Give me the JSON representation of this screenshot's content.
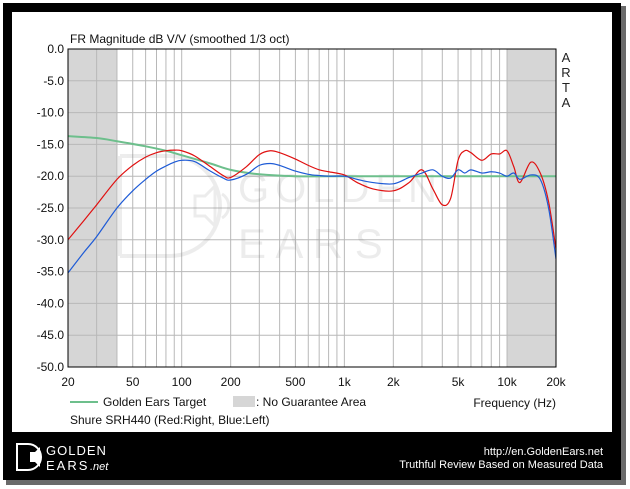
{
  "chart_data": {
    "type": "line",
    "title": "FR Magnitude dB V/V (smoothed 1/3 oct)",
    "side_label": [
      "A",
      "R",
      "T",
      "A"
    ],
    "xlabel": "Frequency (Hz)",
    "ylabel": "",
    "x_scale": "log",
    "xlim": [
      20,
      20000
    ],
    "ylim": [
      -50,
      0
    ],
    "x_ticks": [
      {
        "value": 20,
        "label": "20"
      },
      {
        "value": 50,
        "label": "50"
      },
      {
        "value": 100,
        "label": "100"
      },
      {
        "value": 200,
        "label": "200"
      },
      {
        "value": 500,
        "label": "500"
      },
      {
        "value": 1000,
        "label": "1k"
      },
      {
        "value": 2000,
        "label": "2k"
      },
      {
        "value": 5000,
        "label": "5k"
      },
      {
        "value": 10000,
        "label": "10k"
      },
      {
        "value": 20000,
        "label": "20k"
      }
    ],
    "y_ticks": [
      {
        "value": 0,
        "label": "0.0"
      },
      {
        "value": -5,
        "label": "-5.0"
      },
      {
        "value": -10,
        "label": "-10.0"
      },
      {
        "value": -15,
        "label": "-15.0"
      },
      {
        "value": -20,
        "label": "-20.0"
      },
      {
        "value": -25,
        "label": "-25.0"
      },
      {
        "value": -30,
        "label": "-30.0"
      },
      {
        "value": -35,
        "label": "-35.0"
      },
      {
        "value": -40,
        "label": "-40.0"
      },
      {
        "value": -45,
        "label": "-45.0"
      },
      {
        "value": -50,
        "label": "-50.0"
      }
    ],
    "grid": true,
    "no_guarantee_areas": [
      [
        20,
        40
      ],
      [
        10000,
        20000
      ]
    ],
    "series": [
      {
        "name": "Golden Ears Target",
        "color": "#6dbf8c",
        "x": [
          20,
          30,
          40,
          60,
          80,
          100,
          150,
          200,
          300,
          500,
          1000,
          2000,
          5000,
          10000,
          20000
        ],
        "y": [
          -13.7,
          -14.0,
          -14.5,
          -15.3,
          -16.0,
          -16.7,
          -18.0,
          -19.0,
          -19.7,
          -20.0,
          -20.0,
          -20.0,
          -20.0,
          -20.0,
          -20.0
        ]
      },
      {
        "name": "Right",
        "color": "#e01010",
        "x": [
          20,
          25,
          30,
          40,
          50,
          60,
          70,
          80,
          90,
          100,
          120,
          150,
          180,
          200,
          250,
          300,
          350,
          400,
          500,
          600,
          700,
          800,
          1000,
          1200,
          1500,
          2000,
          2500,
          3000,
          3500,
          4000,
          4500,
          5000,
          5500,
          6000,
          7000,
          8000,
          9000,
          10000,
          11000,
          12000,
          14000,
          16000,
          18000,
          20000
        ],
        "y": [
          -30.0,
          -27.0,
          -24.5,
          -20.5,
          -18.3,
          -17.0,
          -16.3,
          -16.0,
          -15.9,
          -16.0,
          -16.8,
          -18.5,
          -19.9,
          -20.2,
          -18.5,
          -16.6,
          -16.0,
          -16.3,
          -17.3,
          -18.3,
          -19.0,
          -19.3,
          -19.8,
          -21.0,
          -22.0,
          -22.3,
          -21.0,
          -19.0,
          -22.0,
          -24.5,
          -23.5,
          -17.5,
          -16.0,
          -16.3,
          -17.5,
          -16.5,
          -16.5,
          -16.0,
          -18.5,
          -21.0,
          -17.8,
          -19.5,
          -24.0,
          -31.5
        ]
      },
      {
        "name": "Left",
        "color": "#1e5bd6",
        "x": [
          20,
          25,
          30,
          40,
          50,
          60,
          70,
          80,
          90,
          100,
          120,
          150,
          180,
          200,
          250,
          300,
          350,
          400,
          500,
          600,
          700,
          800,
          1000,
          1200,
          1500,
          2000,
          2500,
          3000,
          3500,
          4000,
          4500,
          5000,
          5500,
          6000,
          7000,
          8000,
          9000,
          10000,
          11000,
          12000,
          14000,
          16000,
          18000,
          20000
        ],
        "y": [
          -35.2,
          -32.0,
          -29.5,
          -25.0,
          -22.3,
          -20.5,
          -19.2,
          -18.4,
          -17.8,
          -17.5,
          -17.7,
          -19.2,
          -20.3,
          -20.6,
          -19.7,
          -18.3,
          -18.0,
          -18.3,
          -19.2,
          -19.7,
          -19.9,
          -20.0,
          -20.0,
          -20.5,
          -21.0,
          -21.2,
          -20.2,
          -19.5,
          -19.0,
          -20.0,
          -20.3,
          -19.0,
          -19.5,
          -19.0,
          -19.5,
          -19.3,
          -19.5,
          -20.0,
          -19.5,
          -20.5,
          -19.8,
          -20.5,
          -25.0,
          -33.0
        ]
      }
    ]
  },
  "legend": {
    "target_label": "Golden Ears Target",
    "area_label": ": No Guarantee Area",
    "area_color": "#d6d6d6",
    "product_caption": "Shure SRH440 (Red:Right, Blue:Left)"
  },
  "watermark": {
    "top": "GOLDEN",
    "bottom": "E A R S"
  },
  "footer": {
    "logo_top": "GOLDEN",
    "logo_bottom": "EARS",
    "logo_suffix": ".net",
    "url": "http://en.GoldenEars.net",
    "tagline": "Truthful Review Based on Measured Data"
  },
  "colors": {
    "border": "#000000",
    "grid": "#b8b8b8",
    "plot_bg": "#ffffff",
    "shade": "#d6d6d6",
    "footer_bg": "#000000",
    "footer_text": "#ffffff"
  }
}
